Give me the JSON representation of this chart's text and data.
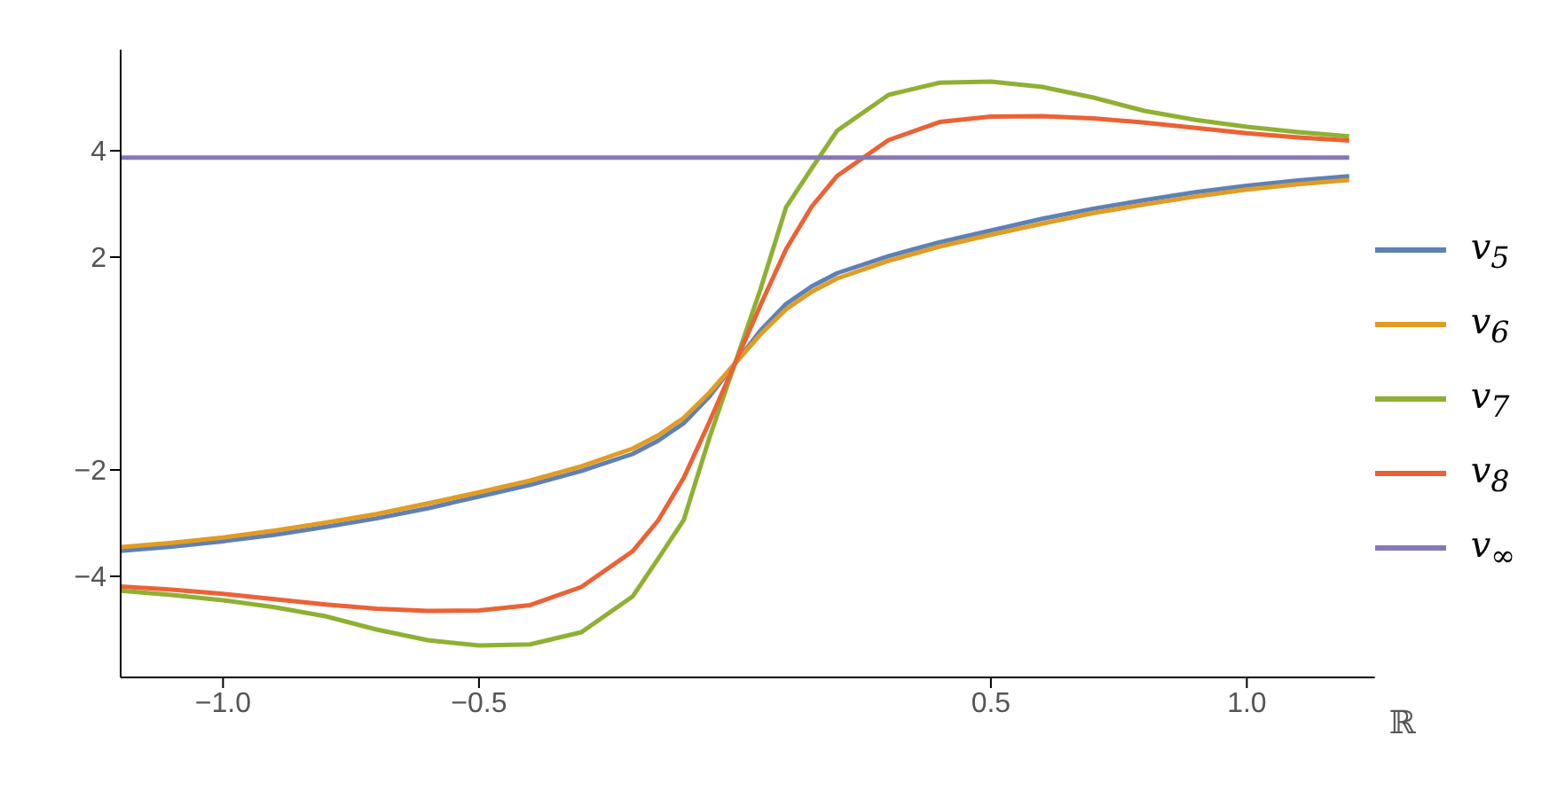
{
  "chart_data": {
    "type": "line",
    "xlabel": "ℝ",
    "x": [
      -1.2,
      -1.1,
      -1.0,
      -0.9,
      -0.8,
      -0.7,
      -0.6,
      -0.5,
      -0.4,
      -0.3,
      -0.2,
      -0.15,
      -0.1,
      -0.05,
      0,
      0.05,
      0.1,
      0.15,
      0.2,
      0.3,
      0.4,
      0.5,
      0.6,
      0.7,
      0.8,
      0.9,
      1.0,
      1.1,
      1.2
    ],
    "series": [
      {
        "name": "v$_{5}$",
        "color": "#5e81b5",
        "values": [
          -3.52,
          -3.44,
          -3.34,
          -3.22,
          -3.07,
          -2.91,
          -2.72,
          -2.5,
          -2.28,
          -2.02,
          -1.7,
          -1.45,
          -1.12,
          -0.62,
          0,
          0.62,
          1.12,
          1.45,
          1.7,
          2.02,
          2.28,
          2.5,
          2.72,
          2.91,
          3.07,
          3.22,
          3.34,
          3.44,
          3.52
        ]
      },
      {
        "name": "v$_{6}$",
        "color": "#e19c24",
        "values": [
          -3.45,
          -3.37,
          -3.27,
          -3.14,
          -2.99,
          -2.83,
          -2.63,
          -2.42,
          -2.2,
          -1.93,
          -1.6,
          -1.35,
          -1.02,
          -0.55,
          0,
          0.55,
          1.02,
          1.35,
          1.6,
          1.93,
          2.2,
          2.42,
          2.63,
          2.83,
          2.99,
          3.14,
          3.27,
          3.37,
          3.45
        ]
      },
      {
        "name": "v$_{7}$",
        "color": "#8fb032",
        "values": [
          -4.27,
          -4.35,
          -4.45,
          -4.58,
          -4.75,
          -5.0,
          -5.2,
          -5.3,
          -5.28,
          -5.05,
          -4.38,
          -3.67,
          -2.94,
          -1.4,
          0,
          1.4,
          2.94,
          3.67,
          4.38,
          5.05,
          5.28,
          5.3,
          5.2,
          5.0,
          4.75,
          4.58,
          4.45,
          4.35,
          4.27
        ]
      },
      {
        "name": "v$_{8}$",
        "color": "#eb6235",
        "values": [
          -4.19,
          -4.25,
          -4.33,
          -4.43,
          -4.53,
          -4.61,
          -4.65,
          -4.64,
          -4.54,
          -4.2,
          -3.53,
          -2.95,
          -2.15,
          -1.1,
          0,
          1.1,
          2.15,
          2.95,
          3.53,
          4.2,
          4.54,
          4.64,
          4.65,
          4.61,
          4.53,
          4.43,
          4.33,
          4.25,
          4.19
        ]
      },
      {
        "name": "v$_{∞}$",
        "color": "#8778b3",
        "values": [
          3.87,
          3.87,
          3.87,
          3.87,
          3.87,
          3.87,
          3.87,
          3.87,
          3.87,
          3.87,
          3.87,
          3.87,
          3.87,
          3.87,
          3.87,
          3.87,
          3.87,
          3.87,
          3.87,
          3.87,
          3.87,
          3.87,
          3.87,
          3.87,
          3.87,
          3.87,
          3.87,
          3.87,
          3.87
        ]
      }
    ],
    "xlim": [
      -1.2,
      1.25
    ],
    "ylim": [
      -5.9,
      5.9
    ],
    "xticks": [
      {
        "value": -1.0,
        "label": "−1.0"
      },
      {
        "value": -0.5,
        "label": "−0.5"
      },
      {
        "value": 0.5,
        "label": "0.5"
      },
      {
        "value": 1.0,
        "label": "1.0"
      }
    ],
    "yticks": [
      {
        "value": -4,
        "label": "−4"
      },
      {
        "value": -2,
        "label": "−2"
      },
      2,
      4
    ],
    "grid": false,
    "legend": "right",
    "marker": "none",
    "line_style": "solid"
  }
}
